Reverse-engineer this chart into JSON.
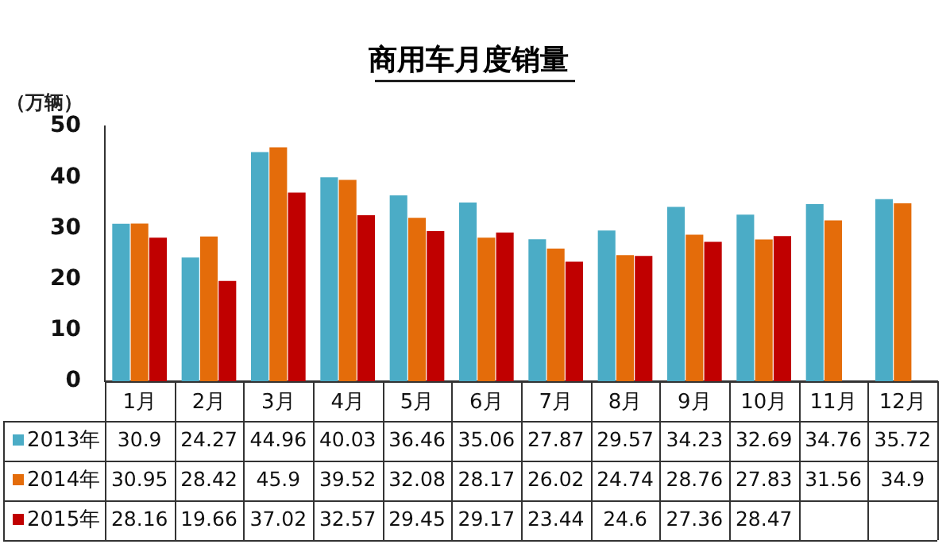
{
  "chart_data": {
    "type": "bar",
    "title": "商用车月度销量",
    "ylabel": "（万辆）",
    "categories": [
      "1月",
      "2月",
      "3月",
      "4月",
      "5月",
      "6月",
      "7月",
      "8月",
      "9月",
      "10月",
      "11月",
      "12月"
    ],
    "series": [
      {
        "name": "2013年",
        "color": "#4bacc6",
        "values": [
          30.9,
          24.27,
          44.96,
          40.03,
          36.46,
          35.06,
          27.87,
          29.57,
          34.23,
          32.69,
          34.76,
          35.72
        ]
      },
      {
        "name": "2014年",
        "color": "#e46c0a",
        "values": [
          30.95,
          28.42,
          45.9,
          39.52,
          32.08,
          28.17,
          26.02,
          24.74,
          28.76,
          27.83,
          31.56,
          34.9
        ]
      },
      {
        "name": "2015年",
        "color": "#c00000",
        "values": [
          28.16,
          19.66,
          37.02,
          32.57,
          29.45,
          29.17,
          23.44,
          24.6,
          27.36,
          28.47,
          null,
          null
        ]
      }
    ],
    "ylim": [
      0,
      50
    ],
    "yticks": [
      0,
      10,
      20,
      30,
      40,
      50
    ],
    "grid": false,
    "legend": "bottom",
    "data_labels": true
  }
}
